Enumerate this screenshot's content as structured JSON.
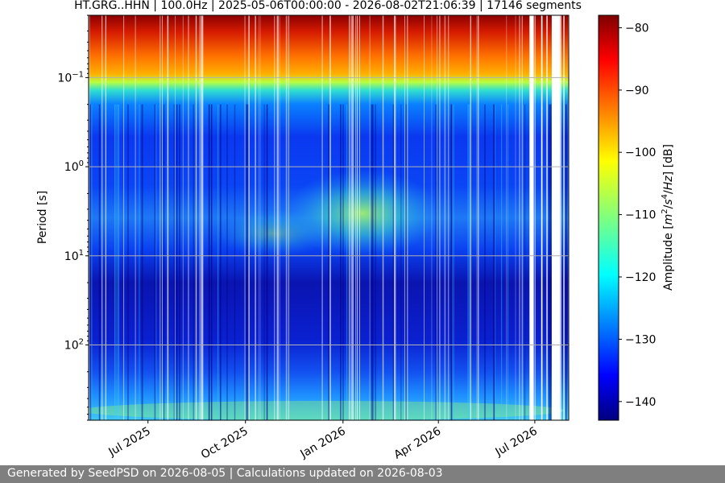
{
  "chart_data": {
    "type": "heatmap",
    "title": "HT.GRG..HHN | 100.0Hz | 2025-05-06T00:00:00 - 2026-08-02T21:06:39 | 17146 segments",
    "xlabel": "",
    "ylabel": "Period [s]",
    "x_range": [
      "2025-05-06",
      "2026-08-02"
    ],
    "x_ticks": [
      {
        "date": "2025-07-01",
        "label": "Jul 2025"
      },
      {
        "date": "2025-10-01",
        "label": "Oct 2025"
      },
      {
        "date": "2026-01-01",
        "label": "Jan 2026"
      },
      {
        "date": "2026-04-01",
        "label": "Apr 2026"
      },
      {
        "date": "2026-07-01",
        "label": "Jul 2026"
      }
    ],
    "y_scale": "log",
    "y_inverted": true,
    "y_range": [
      0.02,
      700
    ],
    "y_ticks": [
      {
        "value": 0.1,
        "base": "10",
        "exp": "−1"
      },
      {
        "value": 1,
        "base": "10",
        "exp": "0"
      },
      {
        "value": 10,
        "base": "10",
        "exp": "1"
      },
      {
        "value": 100,
        "base": "10",
        "exp": "2"
      }
    ],
    "grid": true,
    "colormap": "jet",
    "colorbar": {
      "label_parts": [
        "Amplitude [",
        "m",
        "2",
        "/",
        "s",
        "4",
        "/",
        "Hz",
        "] [dB]"
      ],
      "range": [
        -143,
        -78
      ],
      "ticks": [
        -80,
        -90,
        -100,
        -110,
        -120,
        -130,
        -140
      ]
    },
    "amplitude_profile_db": [
      {
        "period": 0.02,
        "db": -80
      },
      {
        "period": 0.06,
        "db": -84
      },
      {
        "period": 0.1,
        "db": -98
      },
      {
        "period": 0.2,
        "db": -126
      },
      {
        "period": 1,
        "db": -134
      },
      {
        "period": 5,
        "db": -128
      },
      {
        "period": 10,
        "db": -133
      },
      {
        "period": 50,
        "db": -139
      },
      {
        "period": 300,
        "db": -128
      },
      {
        "period": 700,
        "db": -118
      }
    ],
    "gaps": [
      {
        "start": "2026-06-26",
        "end": "2026-06-30"
      },
      {
        "start": "2026-07-07",
        "end": "2026-07-08"
      },
      {
        "start": "2026-07-12",
        "end": "2026-07-13"
      },
      {
        "start": "2026-07-17",
        "end": "2026-07-25"
      },
      {
        "start": "2026-07-28",
        "end": "2026-07-29"
      }
    ]
  },
  "footer": {
    "text": "Generated by SeedPSD on 2026-08-05 | Calculations updated on 2026-08-03"
  }
}
